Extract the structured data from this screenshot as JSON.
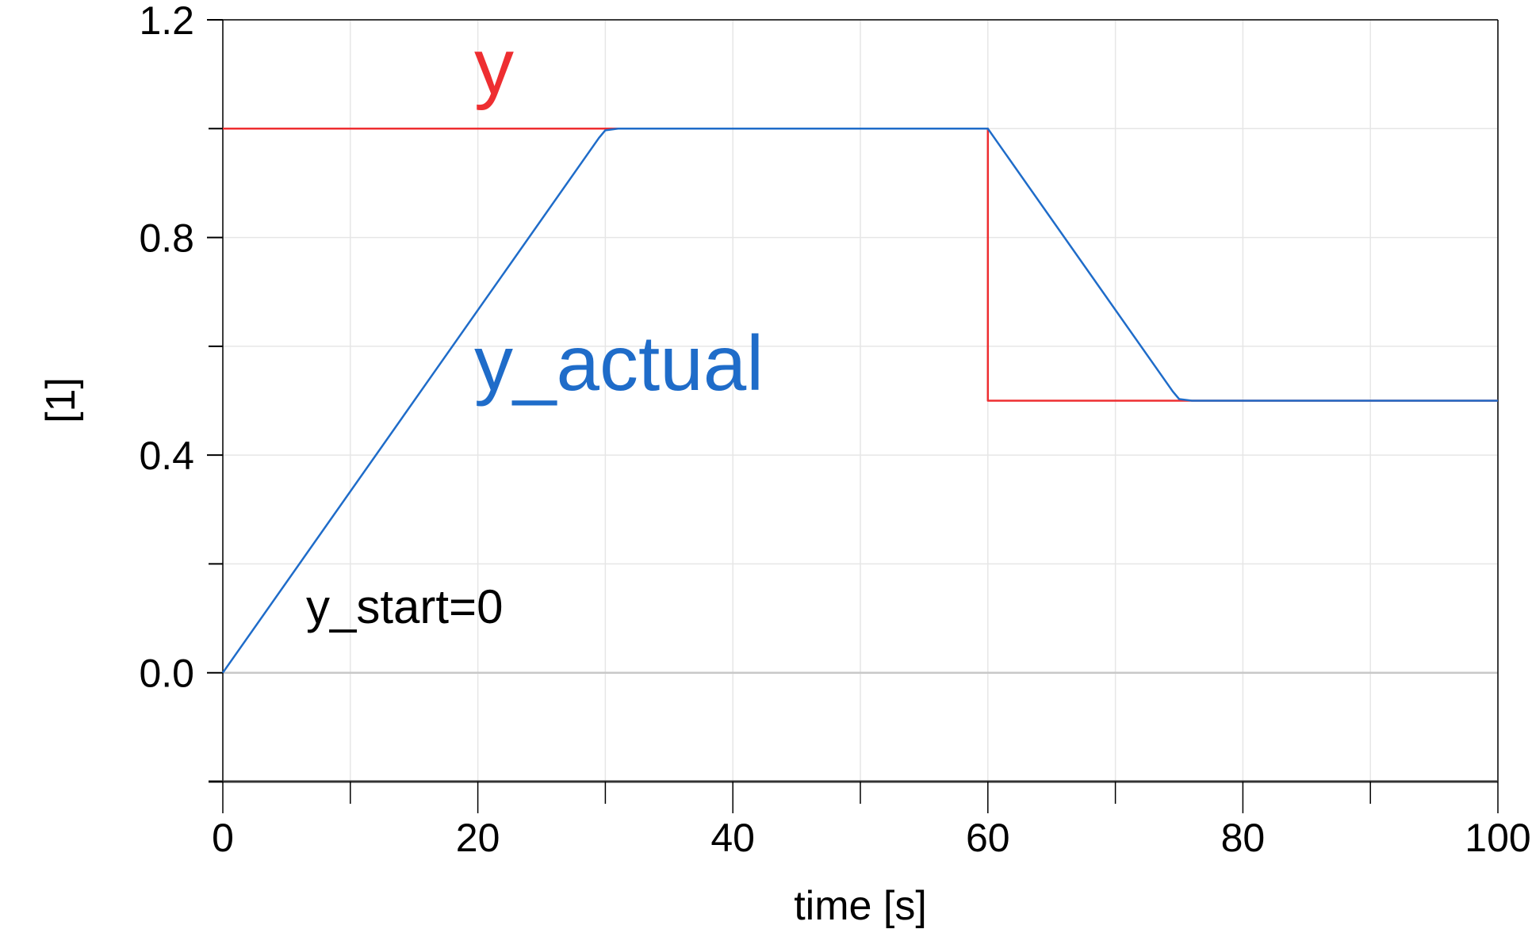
{
  "chart_data": {
    "type": "line",
    "title": "",
    "xlabel": "time [s]",
    "ylabel": "[1]",
    "xlim": [
      0,
      100
    ],
    "ylim": [
      -0.2,
      1.2
    ],
    "xticks": [
      0,
      20,
      40,
      60,
      80,
      100
    ],
    "xticks_minor": [
      10,
      30,
      50,
      70,
      90
    ],
    "yticks": [
      0.0,
      0.4,
      0.8,
      1.2
    ],
    "yticks_minor": [
      -0.2,
      0.2,
      0.6,
      1.0
    ],
    "ytick_labels": [
      "0.0",
      "0.4",
      "0.8",
      "1.2"
    ],
    "xtick_labels": [
      "0",
      "20",
      "40",
      "60",
      "80",
      "100"
    ],
    "grid": true,
    "series": [
      {
        "name": "y",
        "color": "#ee2e31",
        "x": [
          0,
          60,
          60,
          100
        ],
        "y": [
          1.0,
          1.0,
          0.5,
          0.5
        ]
      },
      {
        "name": "y_actual",
        "color": "#1f6cc9",
        "x": [
          0,
          29.5,
          30,
          31,
          60,
          74.5,
          75,
          76,
          100
        ],
        "y": [
          0.0,
          0.983,
          0.997,
          1.0,
          1.0,
          0.517,
          0.503,
          0.5,
          0.5
        ]
      }
    ],
    "annotations": [
      {
        "text": "y_start=0",
        "color": "#000000"
      }
    ]
  }
}
